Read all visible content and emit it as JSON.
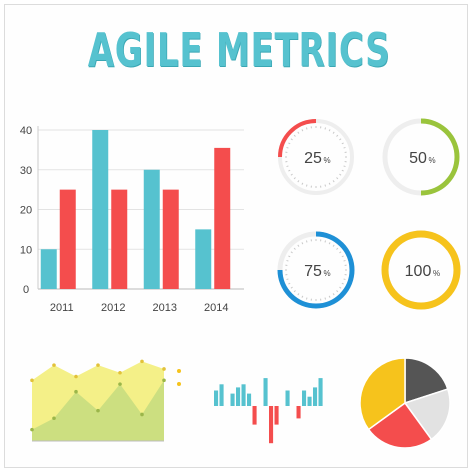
{
  "title": "AGILE METRICS",
  "colors": {
    "teal": "#56c2cf",
    "red": "#f44d4d",
    "green": "#9ac43c",
    "blue": "#1e90d6",
    "yellow": "#f6c31c",
    "dark": "#555555",
    "lightgray": "#e2e2e2",
    "areaYellow": "#f3ef82",
    "areaGreen": "#c9dd7f"
  },
  "chart_data": [
    {
      "type": "bar",
      "categories": [
        "2011",
        "2012",
        "2013",
        "2014"
      ],
      "series": [
        {
          "values": [
            10,
            40,
            30,
            15
          ]
        },
        {
          "values": [
            25,
            25,
            25,
            35.5
          ]
        }
      ],
      "yticks": [
        "0",
        "10",
        "20",
        "30",
        "40"
      ],
      "ylim": [
        0,
        40
      ],
      "grid": true
    },
    {
      "type": "donut",
      "gauges": [
        {
          "value": 25,
          "label": "25",
          "unit": "%"
        },
        {
          "value": 50,
          "label": "50",
          "unit": "%"
        },
        {
          "value": 75,
          "label": "75",
          "unit": "%"
        },
        {
          "value": 100,
          "label": "100",
          "unit": "%"
        }
      ]
    },
    {
      "type": "area",
      "x": [
        0,
        1,
        2,
        3,
        4,
        5,
        6
      ],
      "series": [
        {
          "values": [
            8,
            10,
            8.5,
            10,
            9,
            10.5,
            9.5
          ]
        },
        {
          "values": [
            1.5,
            3,
            6.5,
            4,
            7.5,
            3.5,
            8
          ]
        }
      ],
      "ylim": [
        0,
        12
      ]
    },
    {
      "type": "bar",
      "values": [
        2.5,
        3.5,
        0,
        2,
        3,
        3.5,
        2,
        -3,
        0,
        4.5,
        -6,
        -3,
        0,
        2.5,
        0,
        -2,
        2.5,
        1.5,
        3,
        4.5
      ],
      "ylim": [
        -7,
        5
      ]
    },
    {
      "type": "pie",
      "values": [
        20,
        20,
        25,
        35
      ]
    }
  ]
}
